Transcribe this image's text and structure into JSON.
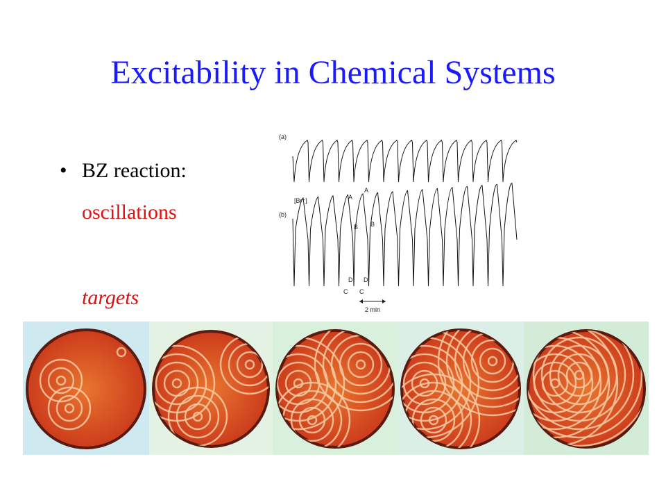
{
  "title": "Excitability in Chemical Systems",
  "bullet": {
    "label": "BZ reaction:",
    "items": [
      "oscillations",
      "targets"
    ]
  },
  "figure": {
    "panel_labels": [
      "(a)",
      "(b)"
    ],
    "species": "[Br⁻]",
    "point_labels": [
      "A",
      "A",
      "B",
      "B",
      "C",
      "C",
      "D",
      "D"
    ],
    "scale": "2 min"
  }
}
